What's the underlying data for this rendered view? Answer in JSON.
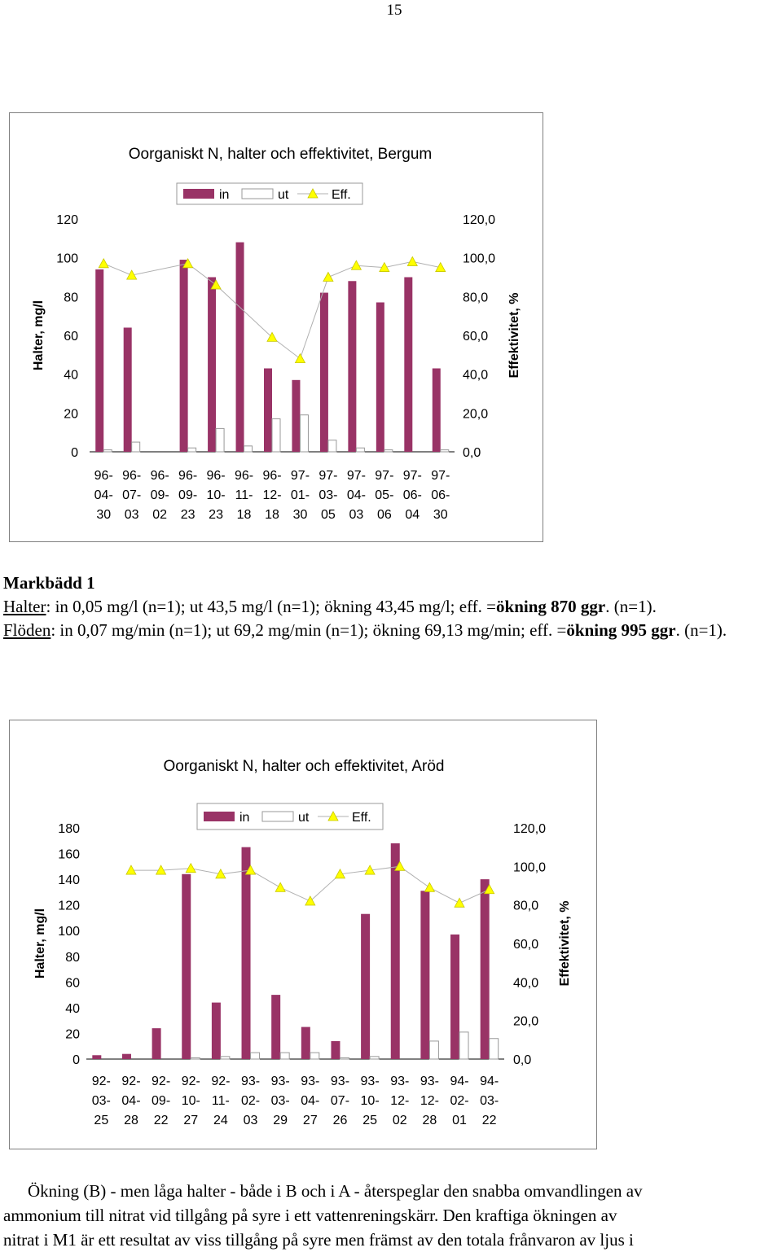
{
  "page_number": "15",
  "chart_data": [
    {
      "type": "bar",
      "title": "Oorganiskt N, halter och effektivitet, Bergum",
      "ylabel": "Halter, mg/l",
      "y2label": "Effektivitet, %",
      "ylim": [
        0,
        120
      ],
      "y2lim": [
        0,
        120
      ],
      "yticks": [
        "0",
        "20",
        "40",
        "60",
        "80",
        "100",
        "120"
      ],
      "y2ticks": [
        "0,0",
        "20,0",
        "40,0",
        "60,0",
        "80,0",
        "100,0",
        "120,0"
      ],
      "legend": [
        "in",
        "ut",
        "Eff."
      ],
      "legend_position": "top",
      "grid": false,
      "categories": [
        [
          "96-",
          "04-",
          "30"
        ],
        [
          "96-",
          "07-",
          "03"
        ],
        [
          "96-",
          "09-",
          "02"
        ],
        [
          "96-",
          "09-",
          "23"
        ],
        [
          "96-",
          "10-",
          "23"
        ],
        [
          "96-",
          "11-",
          "18"
        ],
        [
          "96-",
          "12-",
          "18"
        ],
        [
          "97-",
          "01-",
          "30"
        ],
        [
          "97-",
          "03-",
          "05"
        ],
        [
          "97-",
          "04-",
          "03"
        ],
        [
          "97-",
          "05-",
          "06"
        ],
        [
          "97-",
          "06-",
          "04"
        ],
        [
          "97-",
          "06-",
          "30"
        ]
      ],
      "series": [
        {
          "name": "in",
          "kind": "bar",
          "axis": "left",
          "color": "#993366",
          "values": [
            94,
            64,
            null,
            99,
            90,
            108,
            43,
            37,
            82,
            88,
            77,
            90,
            43
          ]
        },
        {
          "name": "ut",
          "kind": "bar",
          "axis": "left",
          "color": "#ffffff",
          "values": [
            1,
            5,
            null,
            2,
            12,
            3,
            17,
            19,
            6,
            2,
            1,
            null,
            1
          ]
        },
        {
          "name": "Eff.",
          "kind": "line",
          "axis": "right",
          "color": "#ffff00",
          "values": [
            97,
            91,
            null,
            97,
            86,
            null,
            59,
            48,
            90,
            96,
            95,
            98,
            95
          ]
        }
      ]
    },
    {
      "type": "bar",
      "title": "Oorganiskt N, halter och effektivitet, Aröd",
      "ylabel": "Halter, mg/l",
      "y2label": "Effektivitet, %",
      "ylim": [
        0,
        180
      ],
      "y2lim": [
        0,
        120
      ],
      "yticks": [
        "0",
        "20",
        "40",
        "60",
        "80",
        "100",
        "120",
        "140",
        "160",
        "180"
      ],
      "y2ticks": [
        "0,0",
        "20,0",
        "40,0",
        "60,0",
        "80,0",
        "100,0",
        "120,0"
      ],
      "legend": [
        "in",
        "ut",
        "Eff."
      ],
      "legend_position": "top",
      "grid": false,
      "categories": [
        [
          "92-",
          "03-",
          "25"
        ],
        [
          "92-",
          "04-",
          "28"
        ],
        [
          "92-",
          "09-",
          "22"
        ],
        [
          "92-",
          "10-",
          "27"
        ],
        [
          "92-",
          "11-",
          "24"
        ],
        [
          "93-",
          "02-",
          "03"
        ],
        [
          "93-",
          "03-",
          "29"
        ],
        [
          "93-",
          "04-",
          "27"
        ],
        [
          "93-",
          "07-",
          "26"
        ],
        [
          "93-",
          "10-",
          "25"
        ],
        [
          "93-",
          "12-",
          "02"
        ],
        [
          "93-",
          "12-",
          "28"
        ],
        [
          "94-",
          "02-",
          "01"
        ],
        [
          "94-",
          "03-",
          "22"
        ]
      ],
      "series": [
        {
          "name": "in",
          "kind": "bar",
          "axis": "left",
          "color": "#993366",
          "values": [
            3,
            4,
            24,
            144,
            44,
            165,
            50,
            25,
            14,
            113,
            168,
            131,
            97,
            140
          ]
        },
        {
          "name": "ut",
          "kind": "bar",
          "axis": "left",
          "color": "#ffffff",
          "values": [
            null,
            null,
            null,
            1,
            2,
            5,
            5,
            5,
            1,
            2,
            null,
            14,
            21,
            16
          ]
        },
        {
          "name": "Eff.",
          "kind": "line",
          "axis": "right",
          "color": "#ffff00",
          "values": [
            null,
            98,
            98,
            99,
            96,
            98,
            89,
            82,
            96,
            98,
            100,
            89,
            81,
            88
          ]
        }
      ]
    }
  ],
  "markbadd": {
    "heading": "Markbädd 1",
    "halter_label": "Halter",
    "halter_text": ": in 0,05 mg/l (n=1); ut 43,5 mg/l (n=1); ökning 43,45 mg/l; eff. =",
    "halter_bold": "ökning 870 ggr",
    "halter_end": ". (n=1).",
    "floden_label": "Flöden",
    "floden_text": ": in 0,07 mg/min (n=1); ut 69,2 mg/min (n=1); ökning 69,13 mg/min; eff. =",
    "floden_bold": "ökning 995 ggr",
    "floden_end": ". (n=1)."
  },
  "paragraph": [
    "Ökning (B) - men låga halter - både i B och i A - återspeglar den snabba omvandlingen av",
    "ammonium till nitrat vid tillgång på syre i ett vattenreningskärr. Den kraftiga ökningen av",
    "nitrat i M1 är ett resultat av viss tillgång på syre men främst av den totala frånvaron av ljus i"
  ]
}
